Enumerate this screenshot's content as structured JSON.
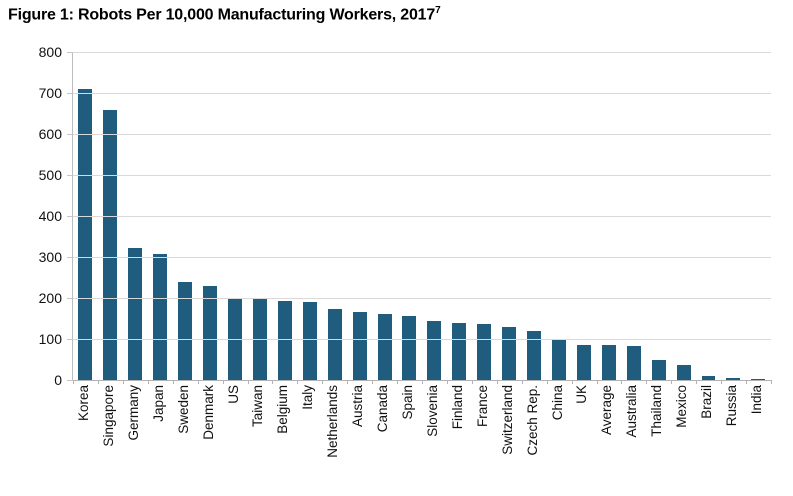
{
  "figure": {
    "title": "Figure 1: Robots Per 10,000 Manufacturing Workers, 2017",
    "title_superscript": "7"
  },
  "chart_data": {
    "type": "bar",
    "title": "Figure 1: Robots Per 10,000 Manufacturing Workers, 2017",
    "title_footnote_marker": "7",
    "categories": [
      "Korea",
      "Singapore",
      "Germany",
      "Japan",
      "Sweden",
      "Denmark",
      "US",
      "Taiwan",
      "Belgium",
      "Italy",
      "Netherlands",
      "Austria",
      "Canada",
      "Spain",
      "Slovenia",
      "Finland",
      "France",
      "Switzerland",
      "Czech Rep.",
      "China",
      "UK",
      "Average",
      "Australia",
      "Thailand",
      "Mexico",
      "Brazil",
      "Russia",
      "India"
    ],
    "values": [
      710,
      658,
      322,
      308,
      240,
      230,
      200,
      197,
      192,
      190,
      172,
      167,
      161,
      157,
      144,
      138,
      137,
      129,
      119,
      97,
      85,
      85,
      83,
      48,
      36,
      10,
      4,
      3
    ],
    "xlabel": "",
    "ylabel": "",
    "ylim": [
      0,
      800
    ],
    "yticks": [
      0,
      100,
      200,
      300,
      400,
      500,
      600,
      700,
      800
    ],
    "grid": "horizontal",
    "legend": "none",
    "x_labels_rotation_degrees": 90
  },
  "colors": {
    "bar": "#205c7d",
    "gridline": "#d9d9d9",
    "axis": "#b3b3b3",
    "text": "#111111",
    "title_text": "#000000"
  }
}
